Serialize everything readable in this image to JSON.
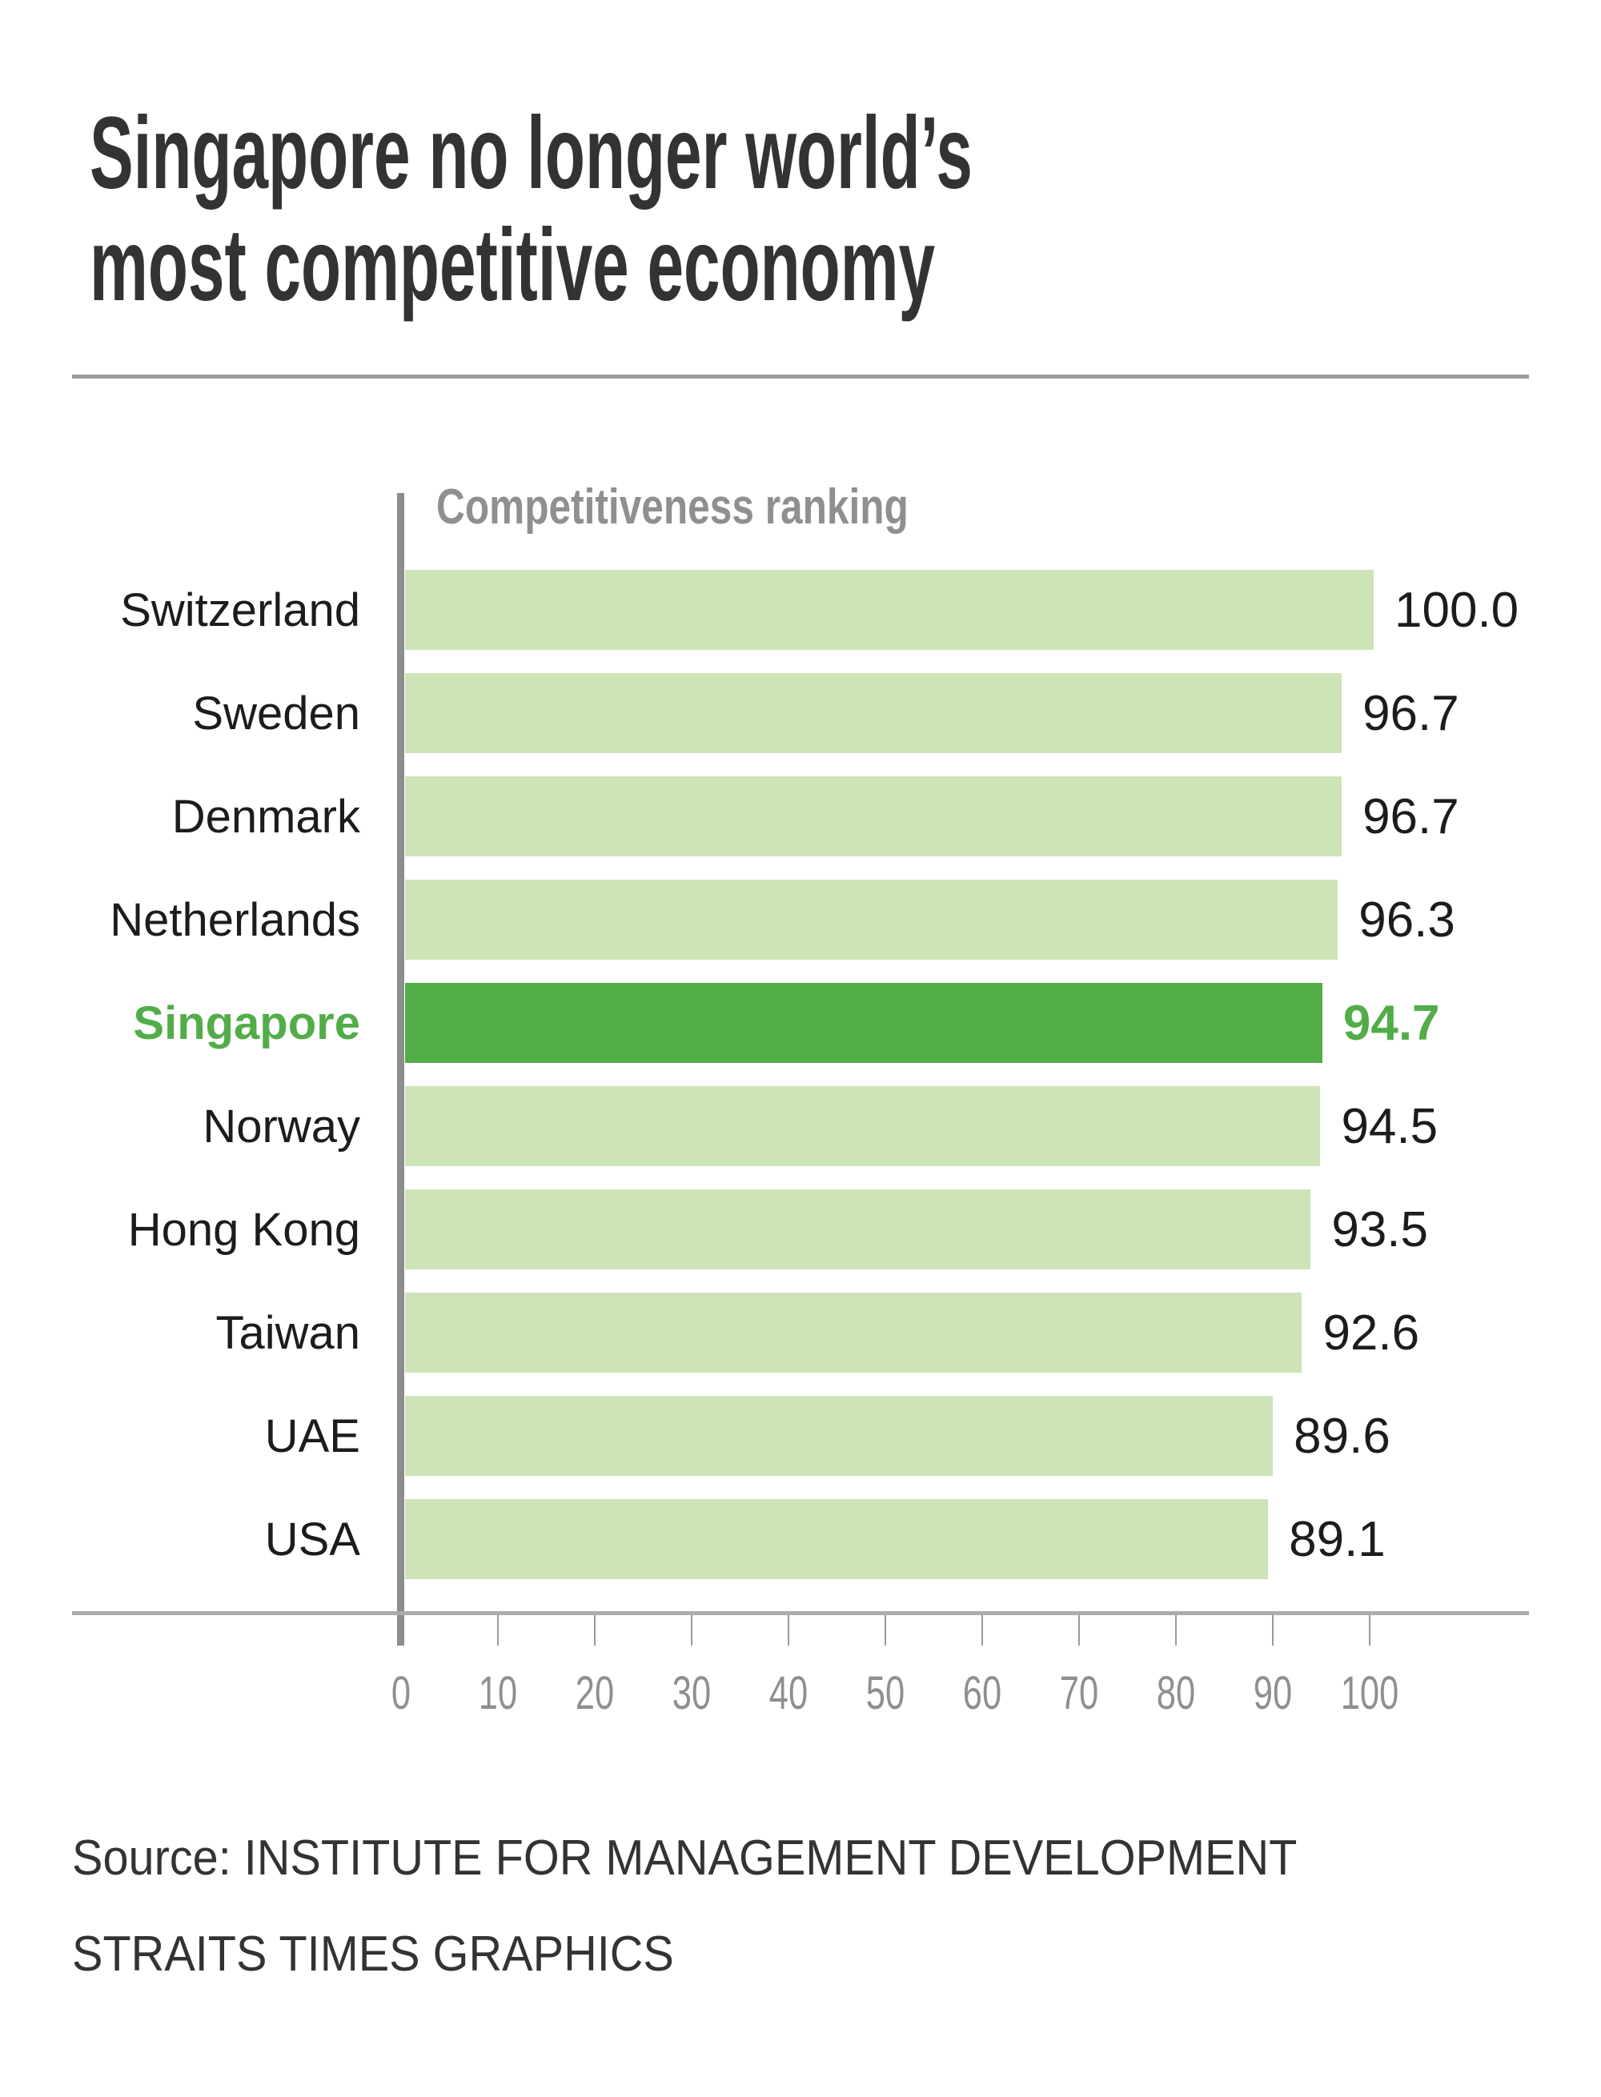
{
  "title": {
    "line1": "Singapore no longer world’s",
    "line2": "most competitive economy"
  },
  "chart_data": {
    "type": "bar",
    "orientation": "horizontal",
    "xlabel": "Competitiveness ranking",
    "categories": [
      "Switzerland",
      "Sweden",
      "Denmark",
      "Netherlands",
      "Singapore",
      "Norway",
      "Hong Kong",
      "Taiwan",
      "UAE",
      "USA"
    ],
    "values": [
      100.0,
      96.7,
      96.7,
      96.3,
      94.7,
      94.5,
      93.5,
      92.6,
      89.6,
      89.1
    ],
    "value_labels": [
      "100.0",
      "96.7",
      "96.7",
      "96.3",
      "94.7",
      "94.5",
      "93.5",
      "92.6",
      "89.6",
      "89.1"
    ],
    "highlighted_category": "Singapore",
    "xlim": [
      0,
      100
    ],
    "x_ticks": [
      0,
      10,
      20,
      30,
      40,
      50,
      60,
      70,
      80,
      90,
      100
    ],
    "grid": false,
    "legend": "none",
    "colors": {
      "bar": "#cde4b7",
      "highlight": "#52ad49",
      "axis": "#8d8d8d",
      "tick_text": "#8f8f8f"
    }
  },
  "source": {
    "line1": "Source: INSTITUTE FOR MANAGEMENT DEVELOPMENT",
    "line2": "STRAITS TIMES GRAPHICS"
  }
}
